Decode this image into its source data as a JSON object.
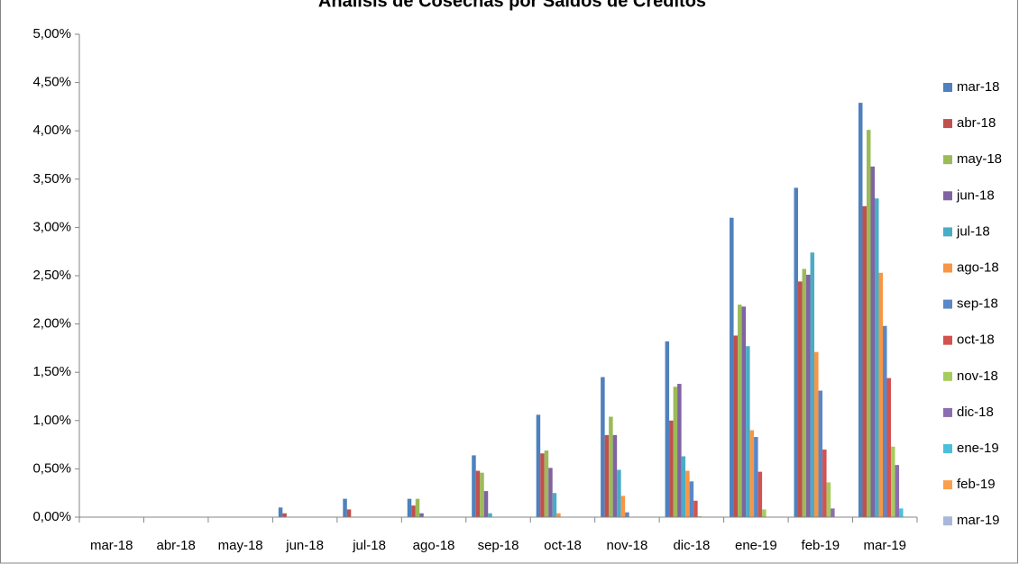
{
  "chart_data": {
    "type": "bar",
    "title": "Análisis de Cosechas por Saldos de Créditos",
    "categories": [
      "mar-18",
      "abr-18",
      "may-18",
      "jun-18",
      "jul-18",
      "ago-18",
      "sep-18",
      "oct-18",
      "nov-18",
      "dic-18",
      "ene-19",
      "feb-19",
      "mar-19"
    ],
    "series": [
      {
        "name": "mar-18",
        "color": "#4F81BD",
        "values": [
          0,
          0,
          0,
          0.1,
          0.19,
          0.19,
          0.64,
          1.06,
          1.45,
          1.82,
          3.1,
          3.41,
          4.29
        ]
      },
      {
        "name": "abr-18",
        "color": "#C0504D",
        "values": [
          0,
          0,
          0,
          0.04,
          0.08,
          0.12,
          0.48,
          0.66,
          0.85,
          1.0,
          1.88,
          2.44,
          3.22
        ]
      },
      {
        "name": "may-18",
        "color": "#9BBB59",
        "values": [
          0,
          0,
          0,
          0,
          0,
          0.19,
          0.46,
          0.69,
          1.04,
          1.35,
          2.2,
          2.57,
          4.01
        ]
      },
      {
        "name": "jun-18",
        "color": "#8064A2",
        "values": [
          0,
          0,
          0,
          0,
          0,
          0.04,
          0.27,
          0.51,
          0.85,
          1.38,
          2.18,
          2.51,
          3.63
        ]
      },
      {
        "name": "jul-18",
        "color": "#4BACC6",
        "values": [
          0,
          0,
          0,
          0,
          0,
          0,
          0.04,
          0.25,
          0.49,
          0.63,
          1.77,
          2.74,
          3.3
        ]
      },
      {
        "name": "ago-18",
        "color": "#F79646",
        "values": [
          0,
          0,
          0,
          0,
          0,
          0,
          0,
          0.04,
          0.22,
          0.48,
          0.9,
          1.71,
          2.53
        ]
      },
      {
        "name": "sep-18",
        "color": "#5A87C5",
        "values": [
          0,
          0,
          0,
          0,
          0,
          0,
          0,
          0,
          0.05,
          0.37,
          0.83,
          1.31,
          1.98
        ]
      },
      {
        "name": "oct-18",
        "color": "#D25350",
        "values": [
          0,
          0,
          0,
          0,
          0,
          0,
          0,
          0,
          0,
          0.17,
          0.47,
          0.7,
          1.44
        ]
      },
      {
        "name": "nov-18",
        "color": "#A6CC5E",
        "values": [
          0,
          0,
          0,
          0,
          0,
          0,
          0,
          0,
          0,
          0.01,
          0.08,
          0.36,
          0.73
        ]
      },
      {
        "name": "dic-18",
        "color": "#8C6DB0",
        "values": [
          0,
          0,
          0,
          0,
          0,
          0,
          0,
          0,
          0,
          0,
          0,
          0.09,
          0.54
        ]
      },
      {
        "name": "ene-19",
        "color": "#4BC1D9",
        "values": [
          0,
          0,
          0,
          0,
          0,
          0,
          0,
          0,
          0,
          0,
          0,
          0,
          0.09
        ]
      },
      {
        "name": "feb-19",
        "color": "#F9A04E",
        "values": [
          0,
          0,
          0,
          0,
          0,
          0,
          0,
          0,
          0,
          0,
          0,
          0,
          0
        ]
      },
      {
        "name": "mar-19",
        "color": "#A9B8D9",
        "values": [
          0,
          0,
          0,
          0,
          0,
          0,
          0,
          0,
          0,
          0,
          0,
          0,
          0
        ]
      }
    ],
    "ylim": [
      0,
      5
    ],
    "yticks": [
      {
        "value": 0,
        "label": "0,00%"
      },
      {
        "value": 0.5,
        "label": "0,50%"
      },
      {
        "value": 1,
        "label": "1,00%"
      },
      {
        "value": 1.5,
        "label": "1,50%"
      },
      {
        "value": 2,
        "label": "2,00%"
      },
      {
        "value": 2.5,
        "label": "2,50%"
      },
      {
        "value": 3,
        "label": "3,00%"
      },
      {
        "value": 3.5,
        "label": "3,50%"
      },
      {
        "value": 4,
        "label": "4,00%"
      },
      {
        "value": 4.5,
        "label": "4,50%"
      },
      {
        "value": 5,
        "label": "5,00%"
      }
    ],
    "grid": false,
    "legend": "right"
  }
}
